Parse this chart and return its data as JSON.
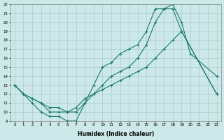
{
  "xlabel": "Humidex (Indice chaleur)",
  "bg_color": "#cce8e8",
  "line_color": "#1a7a6e",
  "grid_color": "#aacccc",
  "xlim": [
    -0.5,
    23.5
  ],
  "ylim": [
    9,
    22
  ],
  "yticks": [
    9,
    10,
    11,
    12,
    13,
    14,
    15,
    16,
    17,
    18,
    19,
    20,
    21,
    22
  ],
  "xticks": [
    0,
    1,
    2,
    3,
    4,
    5,
    6,
    7,
    8,
    9,
    10,
    11,
    12,
    13,
    14,
    15,
    16,
    17,
    18,
    19,
    20,
    21,
    22,
    23
  ],
  "line1_x": [
    0,
    1,
    2,
    3,
    4,
    5,
    6,
    7,
    8,
    9,
    10,
    11,
    12,
    13,
    14,
    15,
    16,
    17,
    18,
    19,
    20,
    23
  ],
  "line1_y": [
    13,
    12,
    11,
    10,
    9.5,
    9.5,
    9,
    9,
    11,
    13,
    15,
    15.5,
    16.5,
    17,
    17.5,
    19,
    21.5,
    21.5,
    22,
    20,
    16.5,
    14
  ],
  "line2_x": [
    0,
    1,
    2,
    3,
    4,
    5,
    6,
    7,
    8,
    9,
    10,
    11,
    12,
    13,
    14,
    15,
    16,
    17,
    18,
    19,
    23
  ],
  "line2_y": [
    13,
    12,
    11.5,
    11,
    10,
    10,
    10,
    10,
    11,
    12,
    13,
    14,
    14.5,
    15,
    16,
    17.5,
    20,
    21.5,
    21.5,
    19,
    12
  ],
  "line3_x": [
    0,
    1,
    2,
    3,
    4,
    5,
    6,
    7,
    8,
    9,
    10,
    11,
    12,
    13,
    14,
    15,
    16,
    17,
    18,
    19,
    23
  ],
  "line3_y": [
    13,
    12,
    11.5,
    11,
    10.5,
    10.5,
    10,
    10.5,
    11.5,
    12,
    12.5,
    13,
    13.5,
    14,
    14.5,
    15,
    16,
    17,
    18,
    19,
    12
  ]
}
